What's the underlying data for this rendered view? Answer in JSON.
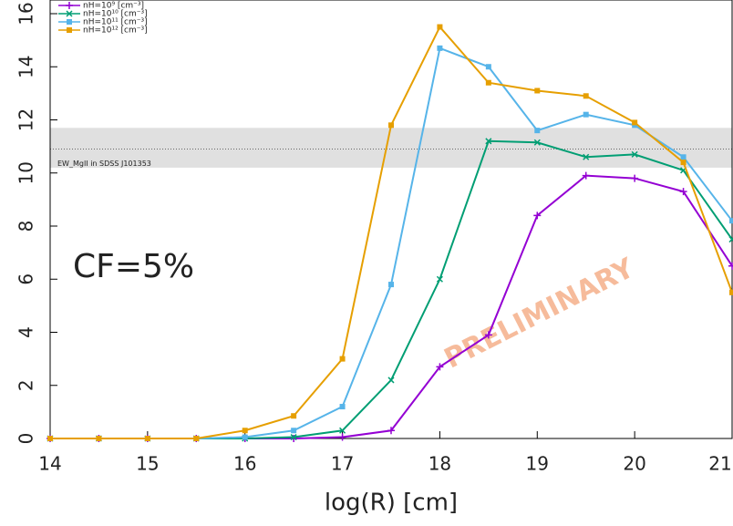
{
  "chart_data": {
    "type": "line",
    "x_label": "log(R) [cm]",
    "x": [
      14,
      14.5,
      15,
      15.5,
      16,
      16.5,
      17,
      17.5,
      18,
      18.5,
      19,
      19.5,
      20,
      20.5,
      21
    ],
    "series": [
      {
        "name": "nH=10⁹ [cm⁻³]",
        "color": "#9400d3",
        "marker": "plus",
        "values": [
          0,
          0,
          0,
          0,
          0,
          0,
          0.05,
          0.3,
          2.7,
          3.9,
          8.4,
          9.9,
          9.8,
          9.3,
          6.5
        ]
      },
      {
        "name": "nH=10¹⁰ [cm⁻³]",
        "color": "#009e73",
        "marker": "cross",
        "values": [
          0,
          0,
          0,
          0,
          0,
          0.05,
          0.3,
          2.2,
          6.0,
          11.2,
          11.15,
          10.6,
          10.7,
          10.1,
          7.5
        ]
      },
      {
        "name": "nH=10¹¹ [cm⁻³]",
        "color": "#56b4e9",
        "marker": "square",
        "values": [
          0,
          0,
          0,
          0,
          0.05,
          0.3,
          1.2,
          5.8,
          14.7,
          14.0,
          11.6,
          12.2,
          11.8,
          10.6,
          8.2
        ]
      },
      {
        "name": "nH=10¹² [cm⁻³]",
        "color": "#e69f00",
        "marker": "square",
        "values": [
          0,
          0,
          0,
          0,
          0.3,
          0.85,
          3.0,
          11.8,
          15.5,
          13.4,
          13.1,
          12.9,
          11.9,
          10.4,
          5.5
        ]
      }
    ],
    "xlim": [
      14,
      21
    ],
    "xticks": [
      14,
      15,
      16,
      17,
      18,
      19,
      20,
      21
    ],
    "ylim": [
      0,
      16
    ],
    "yticks": [
      0,
      2,
      4,
      6,
      8,
      10,
      12,
      14,
      16
    ],
    "band": {
      "range": [
        10.2,
        11.7
      ],
      "line": 10.9,
      "label": "EW_MgII in SDSS J101353"
    },
    "annotation": "CF=5%",
    "watermark": "PRELIMINARY",
    "legend": "upper left"
  }
}
